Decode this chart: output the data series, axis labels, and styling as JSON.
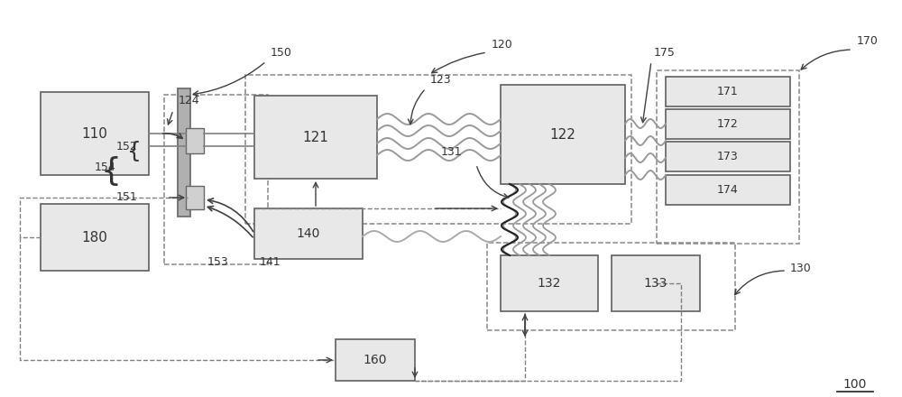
{
  "bg_color": "#ffffff",
  "line_color": "#808080",
  "dark_line": "#404040",
  "box_fill": "#e8e8e8",
  "box_edge": "#606060",
  "dashed_box_edge": "#888888",
  "label_color": "#333333",
  "label_100": "100",
  "label_110": "110",
  "label_120": "120",
  "label_121": "121",
  "label_122": "122",
  "label_123": "123",
  "label_124": "124",
  "label_130": "130",
  "label_131": "131",
  "label_132": "132",
  "label_133": "133",
  "label_140": "140",
  "label_141": "141",
  "label_150": "150",
  "label_151": "151",
  "label_152": "152",
  "label_153": "153",
  "label_154": "154",
  "label_160": "160",
  "label_170": "170",
  "label_171": "171",
  "label_172": "172",
  "label_173": "173",
  "label_174": "174",
  "label_175": "175",
  "label_180": "180"
}
